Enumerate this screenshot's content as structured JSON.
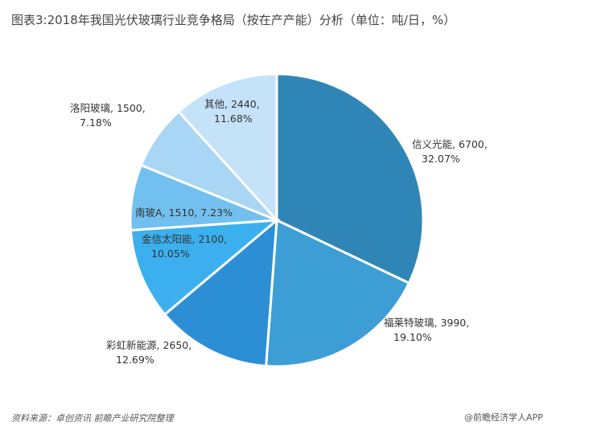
{
  "chart_data": {
    "type": "pie",
    "title": "图表3:2018年我国光伏玻璃行业竞争格局（按在产产能）分析（单位：吨/日，%）",
    "slices": [
      {
        "name": "信义光能",
        "value": 6700,
        "percent": "32.07%",
        "value_text": "6700",
        "color": "#2f86b6"
      },
      {
        "name": "福莱特玻璃",
        "value": 3990,
        "percent": "19.10%",
        "value_text": "3990",
        "color": "#3d9ed6"
      },
      {
        "name": "彩虹新能源",
        "value": 2650,
        "percent": "12.69%",
        "value_text": "2650",
        "color": "#2c8fd6"
      },
      {
        "name": "金信太阳能",
        "value": 2100,
        "percent": "10.05%",
        "value_text": "2100",
        "color": "#3cb0ee"
      },
      {
        "name": "南玻A",
        "value": 1510,
        "percent": "7.23%",
        "value_text": "1510",
        "color": "#72c0ef"
      },
      {
        "name": "洛阳玻璃",
        "value": 1500,
        "percent": "7.18%",
        "value_text": "1500",
        "color": "#a8d6f4"
      },
      {
        "name": "其他",
        "value": 2440,
        "percent": "11.68%",
        "value_text": "2440",
        "color": "#c4e2f8"
      }
    ]
  },
  "footer": {
    "source": "资料来源：卓创资讯 前瞻产业研究院整理",
    "credit": "@前瞻经济学人APP"
  }
}
